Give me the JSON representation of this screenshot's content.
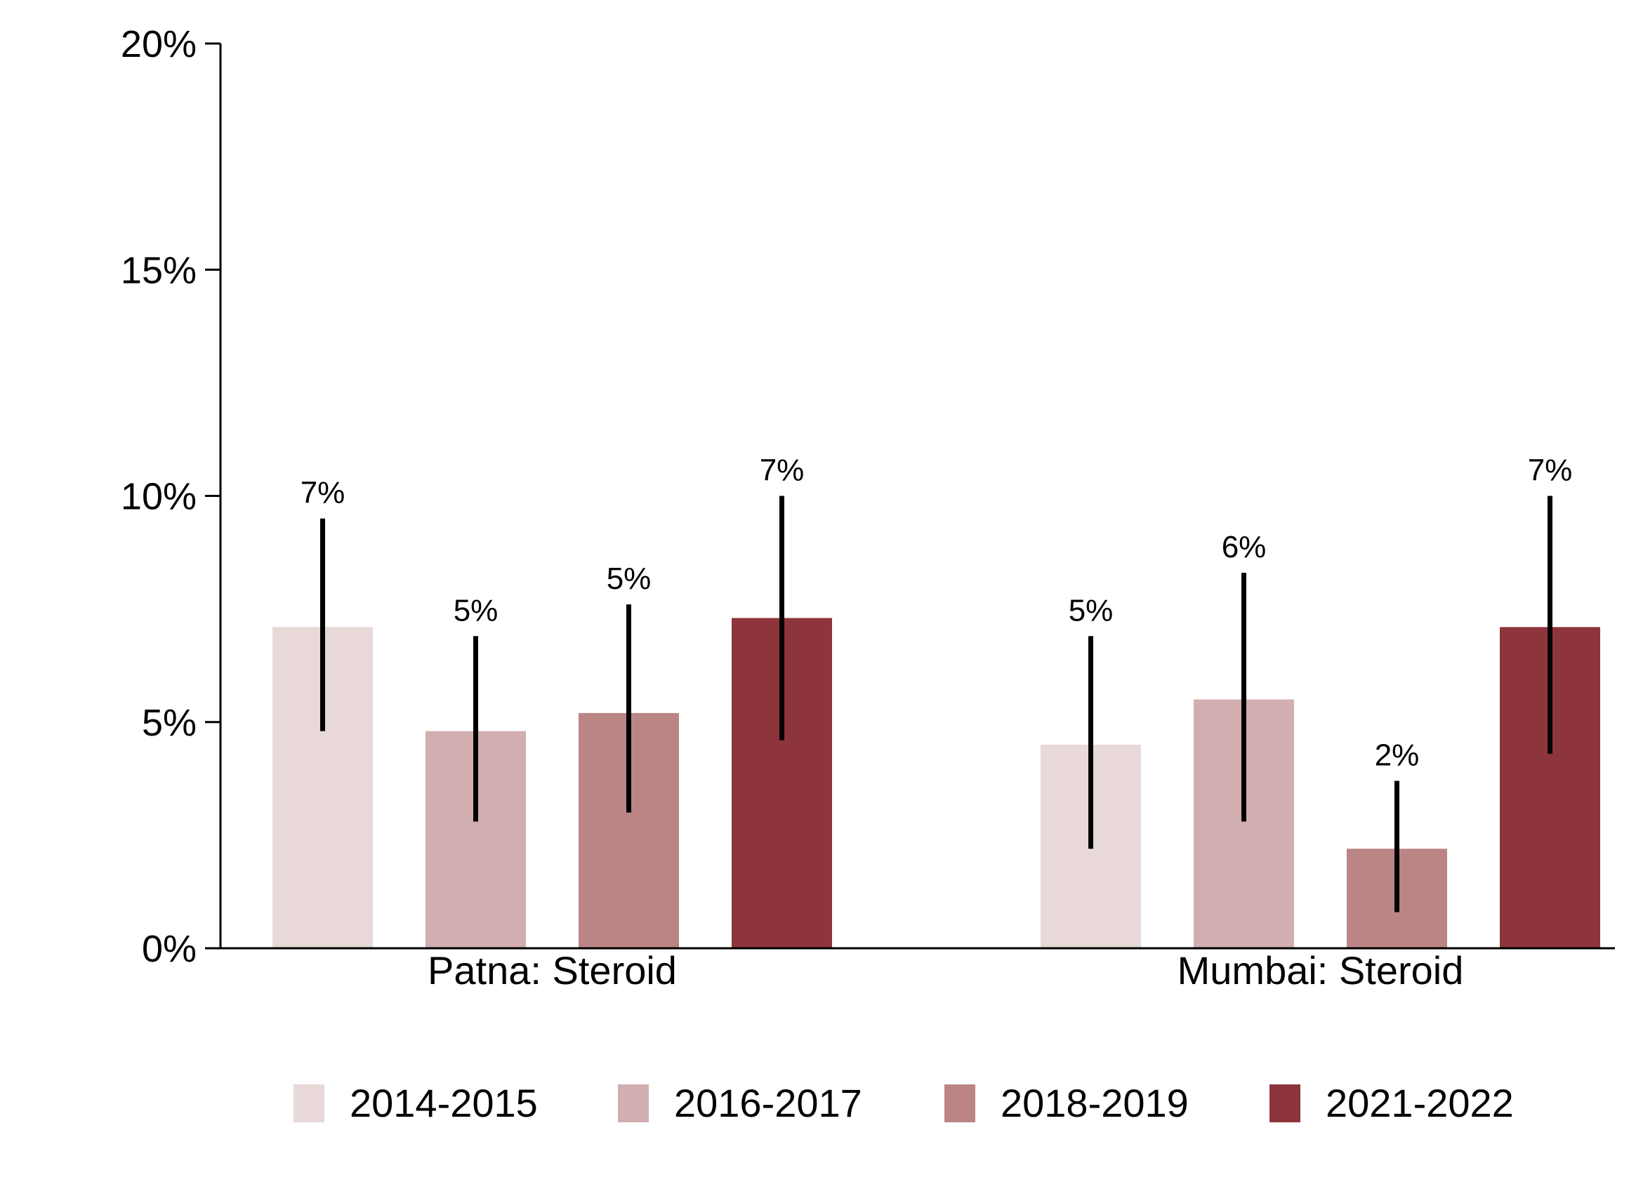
{
  "chart_data": {
    "type": "bar",
    "title": "",
    "xlabel": "",
    "ylabel": "",
    "ylim": [
      0,
      20
    ],
    "yticks": [
      0,
      5,
      10,
      15,
      20
    ],
    "ytick_labels": [
      "0%",
      "5%",
      "10%",
      "15%",
      "20%"
    ],
    "grid": false,
    "legend_position": "bottom",
    "categories": [
      "Patna: Steroid",
      "Mumbai: Steroid"
    ],
    "series": [
      {
        "name": "2014-2015",
        "color": "#e8d8d8",
        "values": [
          7.1,
          4.5
        ],
        "err_low": [
          4.8,
          2.2
        ],
        "err_high": [
          9.5,
          6.9
        ],
        "labels": [
          "7%",
          "5%"
        ]
      },
      {
        "name": "2016-2017",
        "color": "#d3aeb0",
        "values": [
          4.8,
          5.5
        ],
        "err_low": [
          2.8,
          2.8
        ],
        "err_high": [
          6.9,
          8.3
        ],
        "labels": [
          "5%",
          "6%"
        ]
      },
      {
        "name": "2018-2019",
        "color": "#bb8586",
        "values": [
          5.2,
          2.2
        ],
        "err_low": [
          3.0,
          0.8
        ],
        "err_high": [
          7.6,
          3.7
        ],
        "labels": [
          "5%",
          "2%"
        ]
      },
      {
        "name": "2021-2022",
        "color": "#8e343c",
        "values": [
          7.3,
          7.1
        ],
        "err_low": [
          4.6,
          4.3
        ],
        "err_high": [
          10.0,
          10.0
        ],
        "labels": [
          "7%",
          "7%"
        ]
      }
    ]
  }
}
